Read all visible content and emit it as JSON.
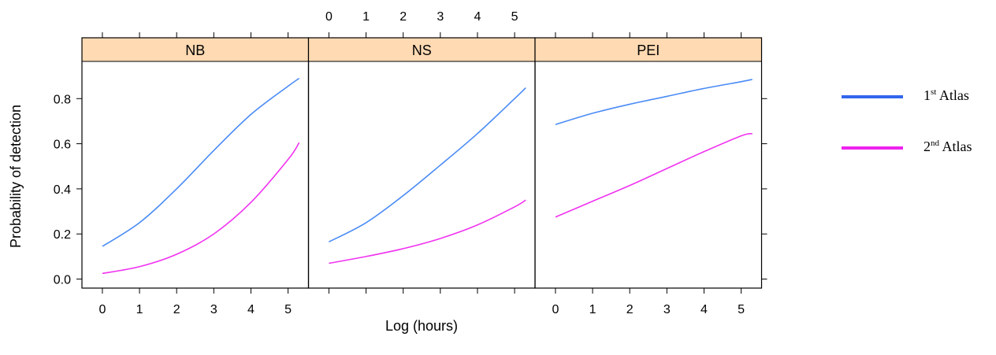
{
  "chart_data": {
    "type": "line",
    "xlabel": "Log (hours)",
    "ylabel": "Probability of detection",
    "xlim": [
      -0.55,
      5.55
    ],
    "ylim": [
      -0.04,
      0.965
    ],
    "xticks": [
      0,
      1,
      2,
      3,
      4,
      5
    ],
    "yticks": [
      "0.0",
      "0.2",
      "0.4",
      "0.6",
      "0.8"
    ],
    "panels": [
      "NB",
      "NS",
      "PEI"
    ],
    "legend_position": "right",
    "colors": {
      "strip": "#FFDAB3",
      "first_atlas": "#4A8BF5",
      "second_atlas": "#F033F0",
      "legend_first": "#3366EE",
      "legend_second": "#EE22EE"
    },
    "series": [
      {
        "name": "1st Atlas",
        "legend_ordinal": "1",
        "legend_suffix": "st",
        "legend_word": "Atlas",
        "panels": {
          "NB": {
            "x": [
              0,
              1,
              2,
              3,
              4,
              5,
              5.3
            ],
            "y": [
              0.145,
              0.25,
              0.4,
              0.57,
              0.73,
              0.855,
              0.89
            ]
          },
          "NS": {
            "x": [
              0,
              1,
              2,
              3,
              4,
              5,
              5.3
            ],
            "y": [
              0.165,
              0.25,
              0.37,
              0.505,
              0.645,
              0.8,
              0.848
            ]
          },
          "PEI": {
            "x": [
              0,
              1,
              2,
              3,
              4,
              5,
              5.3
            ],
            "y": [
              0.685,
              0.735,
              0.775,
              0.81,
              0.845,
              0.875,
              0.885
            ]
          }
        }
      },
      {
        "name": "2nd Atlas",
        "legend_ordinal": "2",
        "legend_suffix": "nd",
        "legend_word": "Atlas",
        "panels": {
          "NB": {
            "x": [
              0,
              1,
              2,
              3,
              4,
              5,
              5.3
            ],
            "y": [
              0.025,
              0.055,
              0.11,
              0.2,
              0.34,
              0.53,
              0.605
            ]
          },
          "NS": {
            "x": [
              0,
              1,
              2,
              3,
              4,
              5,
              5.3
            ],
            "y": [
              0.07,
              0.1,
              0.135,
              0.18,
              0.24,
              0.32,
              0.35
            ]
          },
          "PEI": {
            "x": [
              0,
              1,
              2,
              3,
              4,
              5,
              5.3
            ],
            "y": [
              0.275,
              0.345,
              0.415,
              0.49,
              0.565,
              0.635,
              0.645
            ]
          }
        }
      }
    ]
  }
}
